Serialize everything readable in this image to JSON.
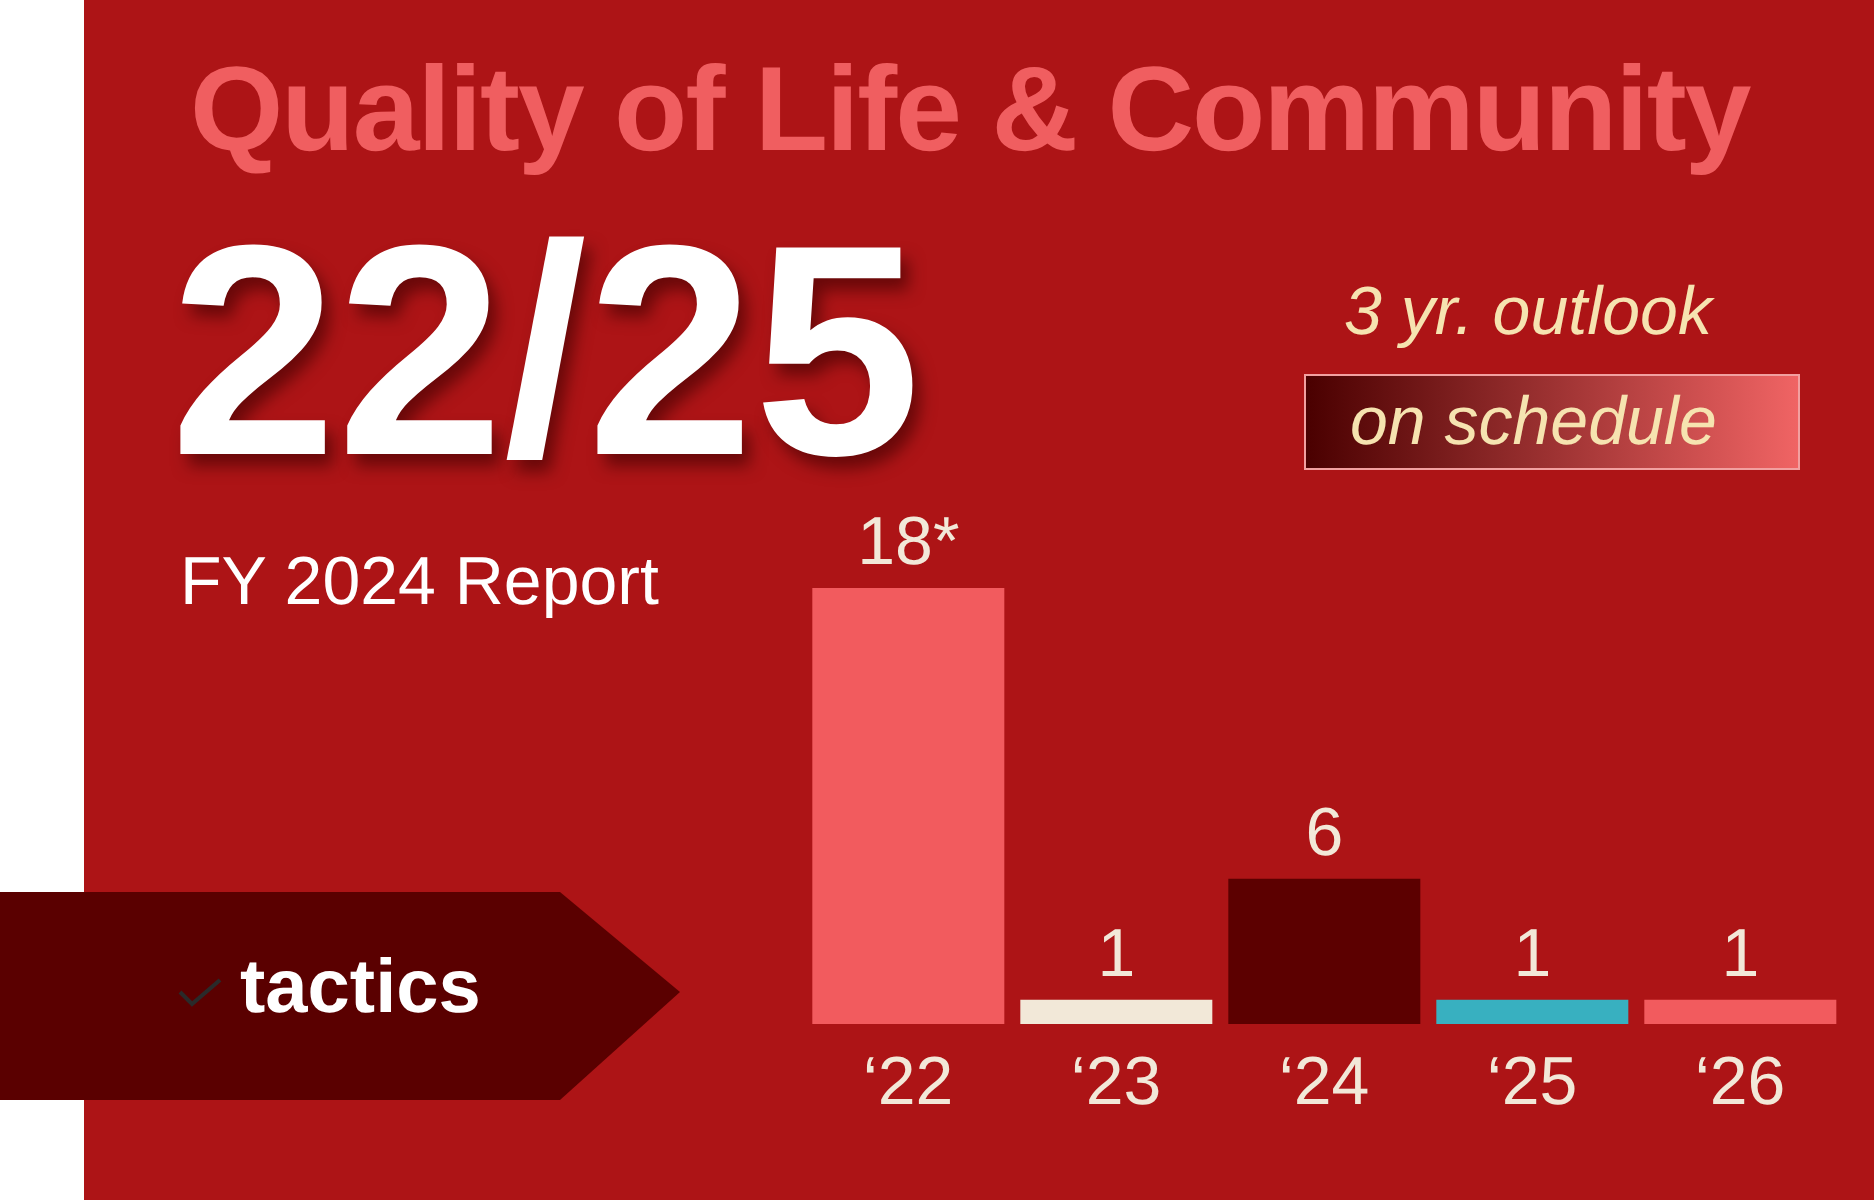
{
  "chart_data": {
    "type": "bar",
    "title": "Quality of Life & Community",
    "subtitle": "22/25",
    "annotations": [
      "FY 2024 Report",
      "3 yr. outlook",
      "on schedule",
      "tactics"
    ],
    "categories": [
      "‘22",
      "‘23",
      "‘24",
      "‘25",
      "‘26"
    ],
    "values": [
      18,
      1,
      6,
      1,
      1
    ],
    "value_labels": [
      "18*",
      "1",
      "6",
      "1",
      "1"
    ],
    "colors": [
      "#f25b5e",
      "#f2e8d8",
      "#5c0000",
      "#38b0c0",
      "#f25b5e"
    ]
  }
}
